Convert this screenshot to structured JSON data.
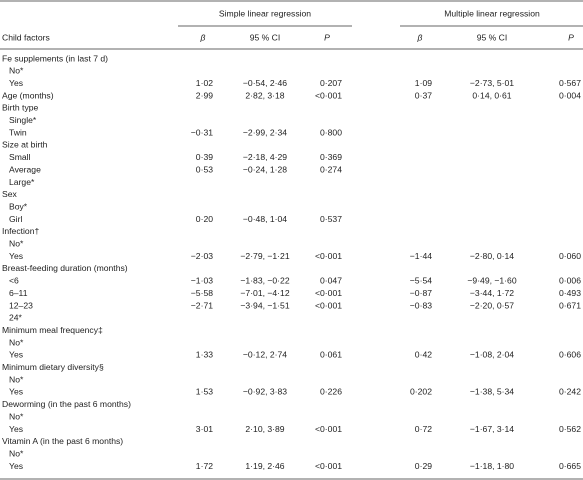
{
  "table": {
    "group_headers": [
      "Simple linear regression",
      "Multiple linear regression"
    ],
    "columns": [
      "Child factors",
      "β",
      "95 % CI",
      "P",
      "β",
      "95 % CI",
      "P"
    ],
    "factors": [
      {
        "factor": "Fe supplements (in last 7 d)",
        "levels": [
          {
            "label": "No*"
          },
          {
            "label": "Yes",
            "simple": {
              "beta": "1·02",
              "ci": "−0·54, 2·46",
              "p": "0·207"
            },
            "multiple": {
              "beta": "1·09",
              "ci": "−2·73, 5·01",
              "p": "0·567"
            }
          }
        ]
      },
      {
        "factor": "Age (months)",
        "simple": {
          "beta": "2·99",
          "ci": "2·82, 3·18",
          "p": "<0·001"
        },
        "multiple": {
          "beta": "0·37",
          "ci": "0·14, 0·61",
          "p": "0·004"
        }
      },
      {
        "factor": "Birth type",
        "levels": [
          {
            "label": "Single*"
          },
          {
            "label": "Twin",
            "simple": {
              "beta": "−0·31",
              "ci": "−2·99, 2·34",
              "p": "0·800"
            }
          }
        ]
      },
      {
        "factor": "Size at birth",
        "levels": [
          {
            "label": "Small",
            "simple": {
              "beta": "0·39",
              "ci": "−2·18, 4·29",
              "p": "0·369"
            }
          },
          {
            "label": "Average",
            "simple": {
              "beta": "0·53",
              "ci": "−0·24, 1·28",
              "p": "0·274"
            }
          },
          {
            "label": "Large*"
          }
        ]
      },
      {
        "factor": "Sex",
        "levels": [
          {
            "label": "Boy*"
          },
          {
            "label": "Girl",
            "simple": {
              "beta": "0·20",
              "ci": "−0·48, 1·04",
              "p": "0·537"
            }
          }
        ]
      },
      {
        "factor": "Infection†",
        "levels": [
          {
            "label": "No*"
          },
          {
            "label": "Yes",
            "simple": {
              "beta": "−2·03",
              "ci": "−2·79, −1·21",
              "p": "<0·001"
            },
            "multiple": {
              "beta": "−1·44",
              "ci": "−2·80, 0·14",
              "p": "0·060"
            }
          }
        ]
      },
      {
        "factor": "Breast-feeding duration (months)",
        "levels": [
          {
            "label": "<6",
            "simple": {
              "beta": "−1·03",
              "ci": "−1·83, −0·22",
              "p": "0·047"
            },
            "multiple": {
              "beta": "−5·54",
              "ci": "−9·49, −1·60",
              "p": "0·006"
            }
          },
          {
            "label": "6–11",
            "simple": {
              "beta": "−5·58",
              "ci": "−7·01, −4·12",
              "p": "<0·001"
            },
            "multiple": {
              "beta": "−0·87",
              "ci": "−3·44, 1·72",
              "p": "0·493"
            }
          },
          {
            "label": "12–23",
            "simple": {
              "beta": "−2·71",
              "ci": "−3·94, −1·51",
              "p": "<0·001"
            },
            "multiple": {
              "beta": "−0·83",
              "ci": "−2·20, 0·57",
              "p": "0·671"
            }
          },
          {
            "label": "24*"
          }
        ]
      },
      {
        "factor": "Minimum meal frequency‡",
        "levels": [
          {
            "label": "No*"
          },
          {
            "label": "Yes",
            "simple": {
              "beta": "1·33",
              "ci": "−0·12, 2·74",
              "p": "0·061"
            },
            "multiple": {
              "beta": "0·42",
              "ci": "−1·08, 2·04",
              "p": "0·606"
            }
          }
        ]
      },
      {
        "factor": "Minimum dietary diversity§",
        "levels": [
          {
            "label": "No*"
          },
          {
            "label": "Yes",
            "simple": {
              "beta": "1·53",
              "ci": "−0·92, 3·83",
              "p": "0·226"
            },
            "multiple": {
              "beta": "0·202",
              "ci": "−1·38, 5·34",
              "p": "0·242"
            }
          }
        ]
      },
      {
        "factor": "Deworming (in the past 6 months)",
        "levels": [
          {
            "label": "No*"
          },
          {
            "label": "Yes",
            "simple": {
              "beta": "3·01",
              "ci": "2·10, 3·89",
              "p": "<0·001"
            },
            "multiple": {
              "beta": "0·72",
              "ci": "−1·67, 3·14",
              "p": "0·562"
            }
          }
        ]
      },
      {
        "factor": "Vitamin A (in the past 6 months)",
        "levels": [
          {
            "label": "No*"
          },
          {
            "label": "Yes",
            "simple": {
              "beta": "1·72",
              "ci": "1·19, 2·46",
              "p": "<0·001"
            },
            "multiple": {
              "beta": "0·29",
              "ci": "−1·18, 1·80",
              "p": "0·665"
            }
          }
        ]
      }
    ]
  }
}
